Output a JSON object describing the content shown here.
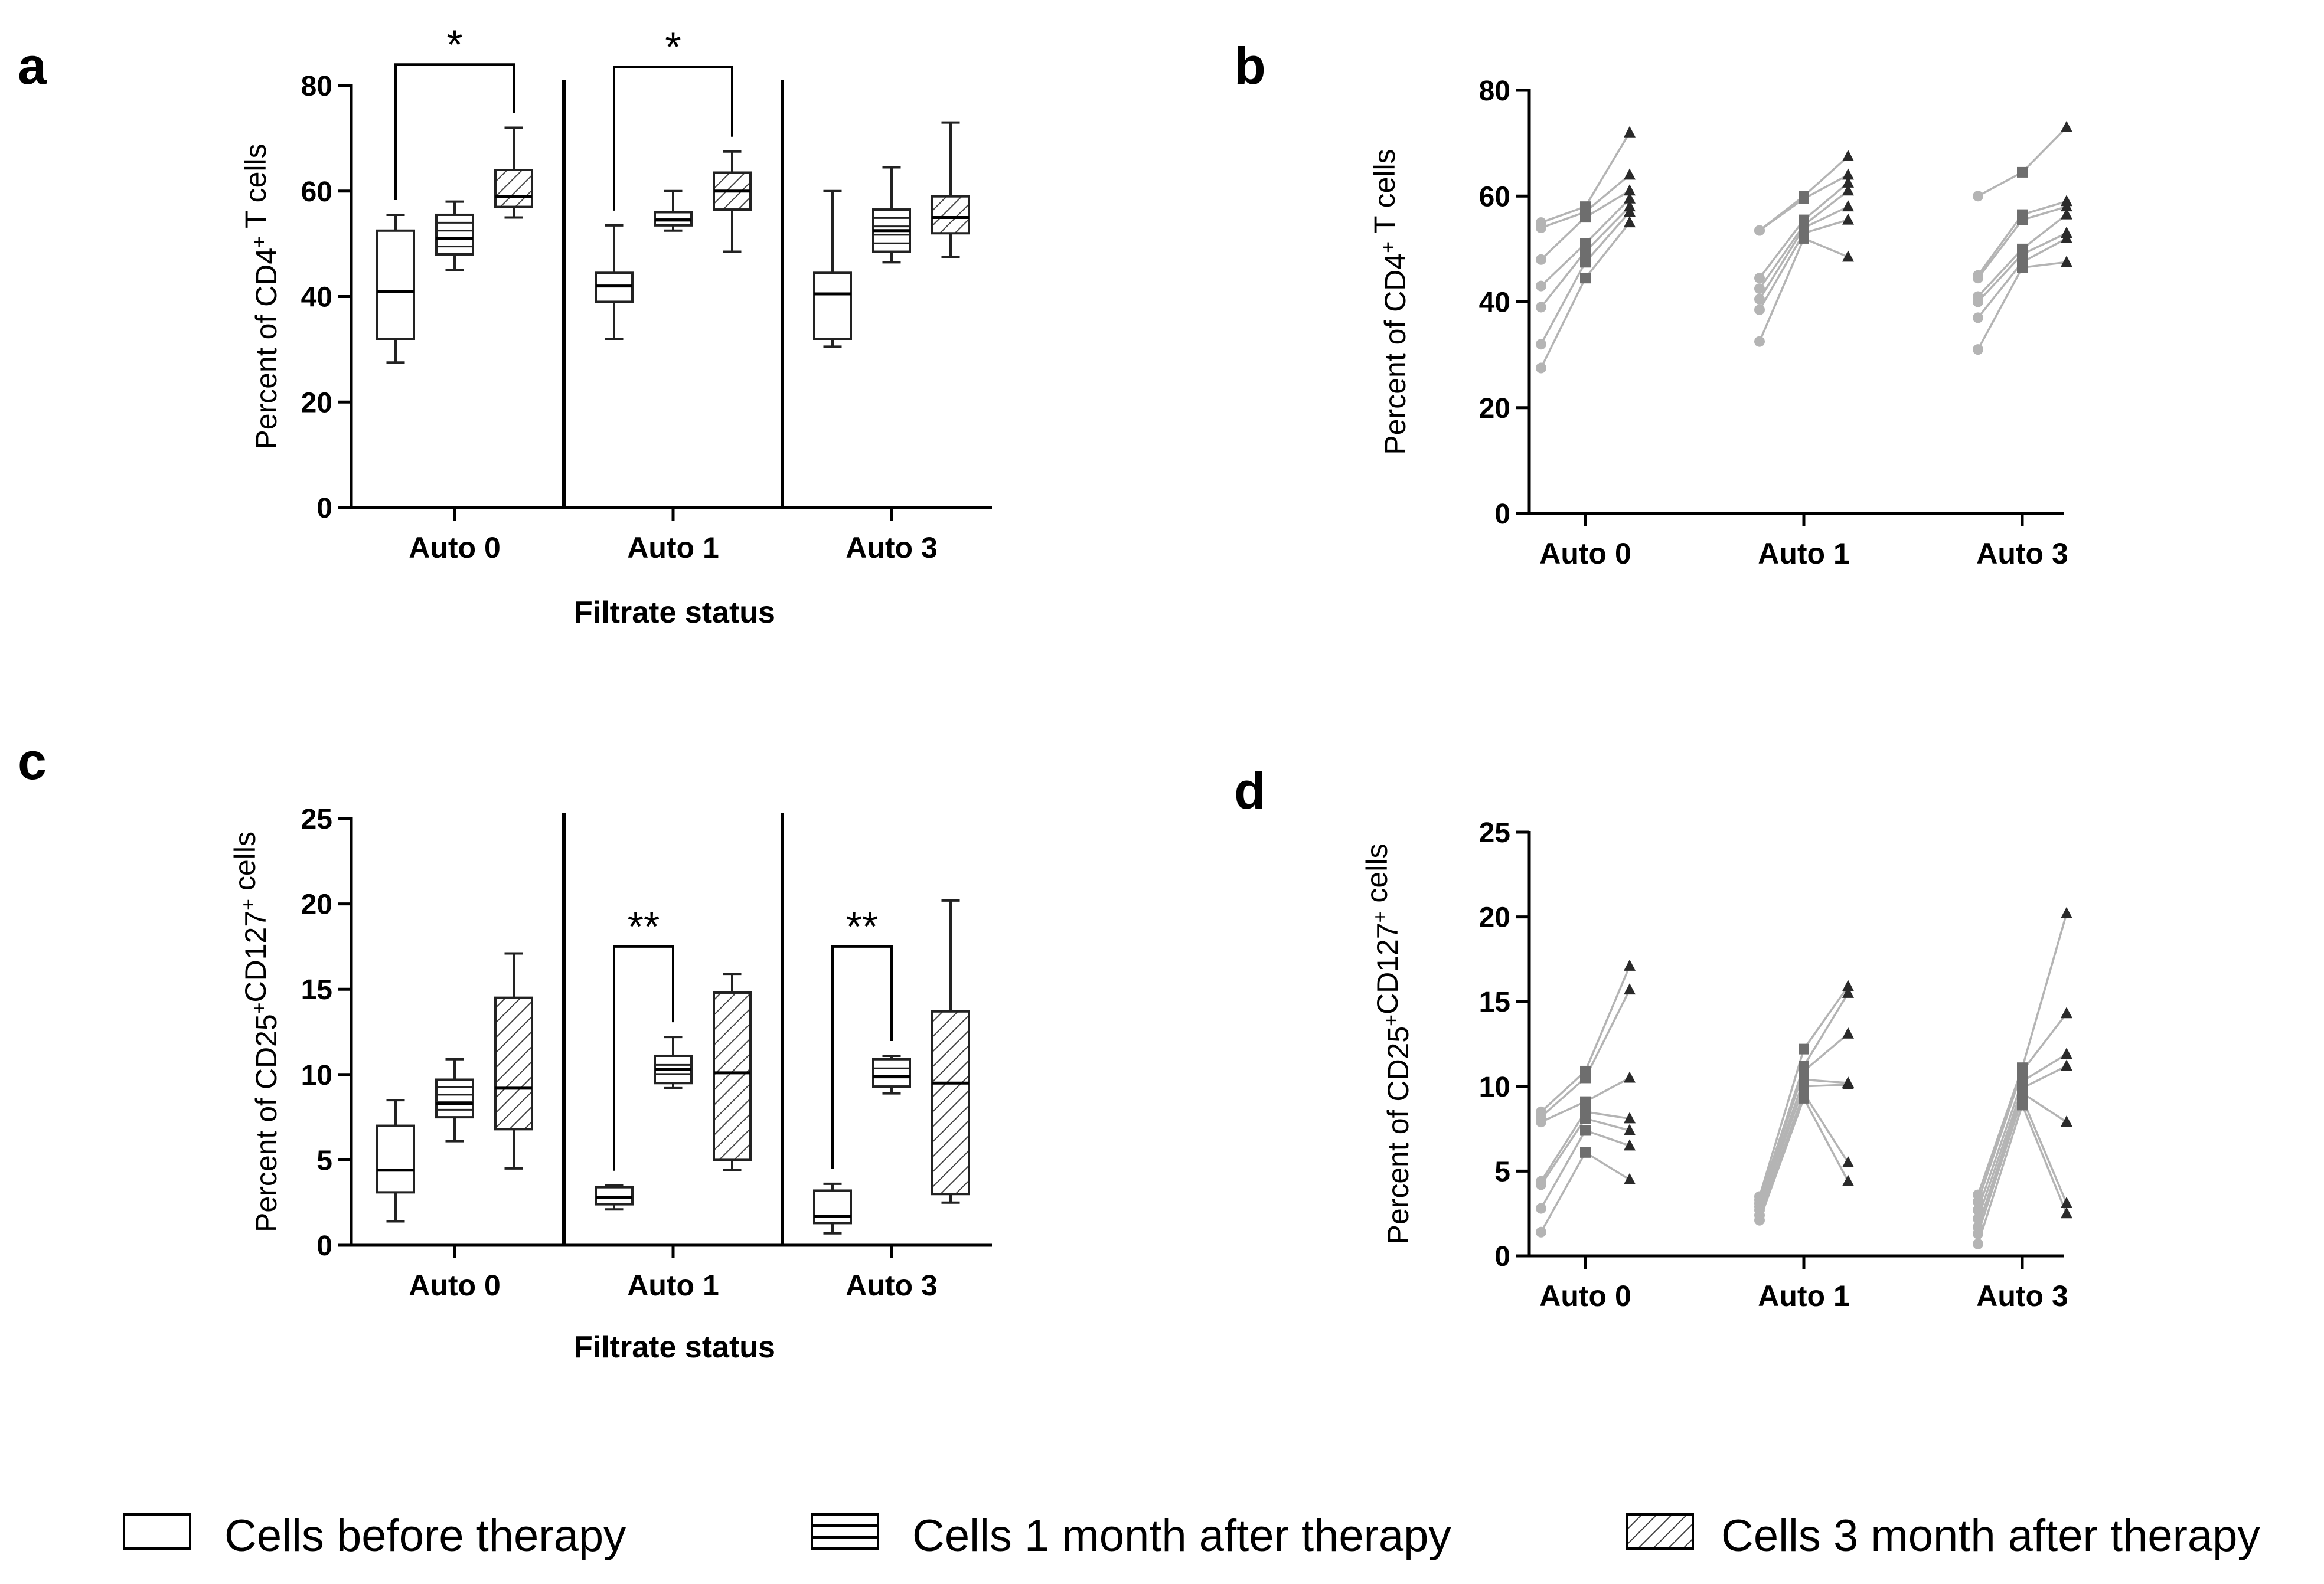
{
  "panels": [
    {
      "letter": "a"
    },
    {
      "letter": "b"
    },
    {
      "letter": "c"
    },
    {
      "letter": "d"
    }
  ],
  "legend": [
    {
      "label": "Cells before therapy",
      "style": "plain"
    },
    {
      "label": "Cells 1 month after therapy",
      "style": "lines"
    },
    {
      "label": "Cells 3 month after therapy",
      "style": "hatch"
    }
  ],
  "chart_data": [
    {
      "id": "a",
      "type": "box",
      "title": "",
      "ylabel": "Percent of CD4+ T cells",
      "ylabel_parts": [
        "Percent of CD4",
        "+",
        " T cells"
      ],
      "xlabel": "Filtrate status",
      "ylim": [
        0,
        80
      ],
      "yticks": [
        "0",
        "20",
        "40",
        "60",
        "80"
      ],
      "categories": [
        "Auto 0",
        "Auto 1",
        "Auto 3"
      ],
      "groups": [
        {
          "category": "Auto 0",
          "boxes": [
            {
              "series": "Cells before therapy",
              "min": 27.5,
              "q1": 32,
              "median": 41,
              "q3": 52.5,
              "max": 55.5
            },
            {
              "series": "Cells 1 month after therapy",
              "min": 45,
              "q1": 48,
              "median": 51,
              "q3": 55.5,
              "max": 58
            },
            {
              "series": "Cells 3 month after therapy",
              "min": 55,
              "q1": 57,
              "median": 59,
              "q3": 64,
              "max": 72
            }
          ]
        },
        {
          "category": "Auto 1",
          "boxes": [
            {
              "series": "Cells before therapy",
              "min": 32,
              "q1": 39,
              "median": 42,
              "q3": 44.5,
              "max": 53.5
            },
            {
              "series": "Cells 1 month after therapy",
              "min": 52.5,
              "q1": 53.5,
              "median": 54.5,
              "q3": 56,
              "max": 60
            },
            {
              "series": "Cells 3 month after therapy",
              "min": 48.5,
              "q1": 56.5,
              "median": 60,
              "q3": 63.5,
              "max": 67.5
            }
          ]
        },
        {
          "category": "Auto 3",
          "boxes": [
            {
              "series": "Cells before therapy",
              "min": 30.5,
              "q1": 32,
              "median": 40.5,
              "q3": 44.5,
              "max": 60
            },
            {
              "series": "Cells 1 month after therapy",
              "min": 46.5,
              "q1": 48.5,
              "median": 52.5,
              "q3": 56.5,
              "max": 64.5
            },
            {
              "series": "Cells 3 month after therapy",
              "min": 47.5,
              "q1": 52,
              "median": 55,
              "q3": 59,
              "max": 73
            }
          ]
        }
      ],
      "significance": [
        {
          "category": "Auto 0",
          "from": 0,
          "to": 2,
          "label": "*",
          "level": 84
        },
        {
          "category": "Auto 1",
          "from": 0,
          "to": 2,
          "label": "*",
          "level": 83.5
        }
      ]
    },
    {
      "id": "b",
      "type": "line",
      "title": "",
      "ylabel": "Percent of CD4+ T cells",
      "ylabel_parts": [
        "Percent of CD4",
        "+",
        " T cells"
      ],
      "xlabel": "",
      "ylim": [
        0,
        80
      ],
      "yticks": [
        "0",
        "20",
        "40",
        "60",
        "80"
      ],
      "categories": [
        "Auto 0",
        "Auto 1",
        "Auto 3"
      ],
      "groups": [
        {
          "category": "Auto 0",
          "before": [
            27.5,
            32,
            39,
            43,
            48,
            54,
            55
          ],
          "one_month": [
            44.5,
            47.5,
            49.5,
            51,
            56,
            57,
            58
          ],
          "three_month": [
            55,
            57,
            58,
            59.5,
            61,
            64,
            72
          ]
        },
        {
          "category": "Auto 1",
          "before": [
            32.5,
            38.5,
            40.5,
            42.5,
            44.5,
            53.5,
            53.5
          ],
          "one_month": [
            52,
            53,
            54,
            54.5,
            55.5,
            59.5,
            60
          ],
          "three_month": [
            48.5,
            55.5,
            58,
            61,
            62.5,
            64,
            67.5
          ]
        },
        {
          "category": "Auto 3",
          "before": [
            31,
            37,
            40,
            41,
            44.5,
            45,
            60
          ],
          "one_month": [
            46.5,
            47.5,
            49,
            50,
            55.5,
            56.5,
            64.5
          ],
          "three_month": [
            47.5,
            52,
            53,
            56.5,
            58,
            59,
            73
          ]
        }
      ]
    },
    {
      "id": "c",
      "type": "box",
      "title": "",
      "ylabel": "Percent of CD25+CD127+ cells",
      "ylabel_parts": [
        "Percent of CD25",
        "+",
        "CD127",
        "+",
        " cells"
      ],
      "xlabel": "Filtrate status",
      "ylim": [
        0,
        25
      ],
      "yticks": [
        "0",
        "5",
        "10",
        "15",
        "20",
        "25"
      ],
      "categories": [
        "Auto 0",
        "Auto 1",
        "Auto 3"
      ],
      "groups": [
        {
          "category": "Auto 0",
          "boxes": [
            {
              "series": "Cells before therapy",
              "min": 1.4,
              "q1": 3.1,
              "median": 4.4,
              "q3": 7,
              "max": 8.5
            },
            {
              "series": "Cells 1 month after therapy",
              "min": 6.1,
              "q1": 7.5,
              "median": 8.3,
              "q3": 9.7,
              "max": 10.9
            },
            {
              "series": "Cells 3 month after therapy",
              "min": 4.5,
              "q1": 6.8,
              "median": 9.2,
              "q3": 14.5,
              "max": 17.1
            }
          ]
        },
        {
          "category": "Auto 1",
          "boxes": [
            {
              "series": "Cells before therapy",
              "min": 2.1,
              "q1": 2.4,
              "median": 2.8,
              "q3": 3.4,
              "max": 3.5
            },
            {
              "series": "Cells 1 month after therapy",
              "min": 9.2,
              "q1": 9.5,
              "median": 10.3,
              "q3": 11.1,
              "max": 12.2
            },
            {
              "series": "Cells 3 month after therapy",
              "min": 4.4,
              "q1": 5,
              "median": 10.1,
              "q3": 14.8,
              "max": 15.9
            }
          ]
        },
        {
          "category": "Auto 3",
          "boxes": [
            {
              "series": "Cells before therapy",
              "min": 0.7,
              "q1": 1.3,
              "median": 1.7,
              "q3": 3.2,
              "max": 3.6
            },
            {
              "series": "Cells 1 month after therapy",
              "min": 8.9,
              "q1": 9.3,
              "median": 9.9,
              "q3": 10.9,
              "max": 11.1
            },
            {
              "series": "Cells 3 month after therapy",
              "min": 2.5,
              "q1": 3,
              "median": 9.5,
              "q3": 13.7,
              "max": 20.2
            }
          ]
        }
      ],
      "significance": [
        {
          "category": "Auto 1",
          "from": 0,
          "to": 1,
          "label": "**",
          "level": 17.5
        },
        {
          "category": "Auto 3",
          "from": 0,
          "to": 1,
          "label": "**",
          "level": 17.5
        }
      ]
    },
    {
      "id": "d",
      "type": "line",
      "title": "",
      "ylabel": "Percent of CD25+CD127+ cells",
      "ylabel_parts": [
        "Percent of CD25",
        "+",
        "CD127",
        "+",
        " cells"
      ],
      "xlabel": "",
      "ylim": [
        0,
        25
      ],
      "yticks": [
        "0",
        "5",
        "10",
        "15",
        "20",
        "25"
      ],
      "categories": [
        "Auto 0",
        "Auto 1",
        "Auto 3"
      ],
      "groups": [
        {
          "category": "Auto 0",
          "before": [
            1.4,
            2.8,
            4.2,
            4.4,
            7.9,
            8.2,
            8.5
          ],
          "one_month": [
            6.1,
            7.4,
            8.1,
            8.5,
            9.1,
            10.5,
            10.9
          ],
          "three_month": [
            4.5,
            6.5,
            7.4,
            8.1,
            10.5,
            15.7,
            17.1
          ]
        },
        {
          "category": "Auto 1",
          "before": [
            2.1,
            2.4,
            2.7,
            2.9,
            3.1,
            3.3,
            3.5
          ],
          "one_month": [
            9.3,
            9.6,
            10,
            10.4,
            10.9,
            11.2,
            12.2
          ],
          "three_month": [
            4.4,
            5.5,
            10.1,
            10.2,
            13.1,
            15.5,
            15.9
          ]
        },
        {
          "category": "Auto 3",
          "before": [
            0.7,
            1.3,
            1.7,
            2.2,
            2.7,
            3.2,
            3.6
          ],
          "one_month": [
            8.9,
            9.3,
            9.6,
            9.9,
            10.3,
            10.9,
            11.1
          ],
          "three_month": [
            2.5,
            3.1,
            7.9,
            11.2,
            11.9,
            14.3,
            20.2
          ]
        }
      ]
    }
  ],
  "colors": {
    "axis": "#000000",
    "box_stroke": "#222222",
    "before": "#b4b4b4",
    "one_month": "#6e6e6e",
    "three_month": "#2a2a2a",
    "pair_line": "#b4b4b4"
  }
}
